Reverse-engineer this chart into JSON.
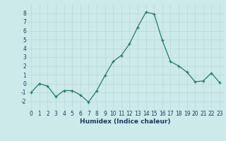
{
  "x": [
    0,
    1,
    2,
    3,
    4,
    5,
    6,
    7,
    8,
    9,
    10,
    11,
    12,
    13,
    14,
    15,
    16,
    17,
    18,
    19,
    20,
    21,
    22,
    23
  ],
  "y": [
    -1,
    0,
    -0.3,
    -1.5,
    -0.8,
    -0.8,
    -1.3,
    -2.1,
    -0.8,
    0.9,
    2.5,
    3.2,
    4.5,
    6.4,
    8.1,
    7.9,
    4.9,
    2.5,
    2.0,
    1.3,
    0.2,
    0.3,
    1.2,
    0.1
  ],
  "xlabel": "Humidex (Indice chaleur)",
  "ylim": [
    -3,
    9
  ],
  "xlim": [
    -0.5,
    23.5
  ],
  "line_color": "#1e7a6e",
  "bg_color": "#cceaea",
  "grid_color": "#b8d8d8",
  "yticks": [
    -2,
    -1,
    0,
    1,
    2,
    3,
    4,
    5,
    6,
    7,
    8
  ],
  "xticks": [
    0,
    1,
    2,
    3,
    4,
    5,
    6,
    7,
    8,
    9,
    10,
    11,
    12,
    13,
    14,
    15,
    16,
    17,
    18,
    19,
    20,
    21,
    22,
    23
  ],
  "tick_fontsize": 5.5,
  "xlabel_fontsize": 6.5,
  "xlabel_color": "#1a3a5c"
}
